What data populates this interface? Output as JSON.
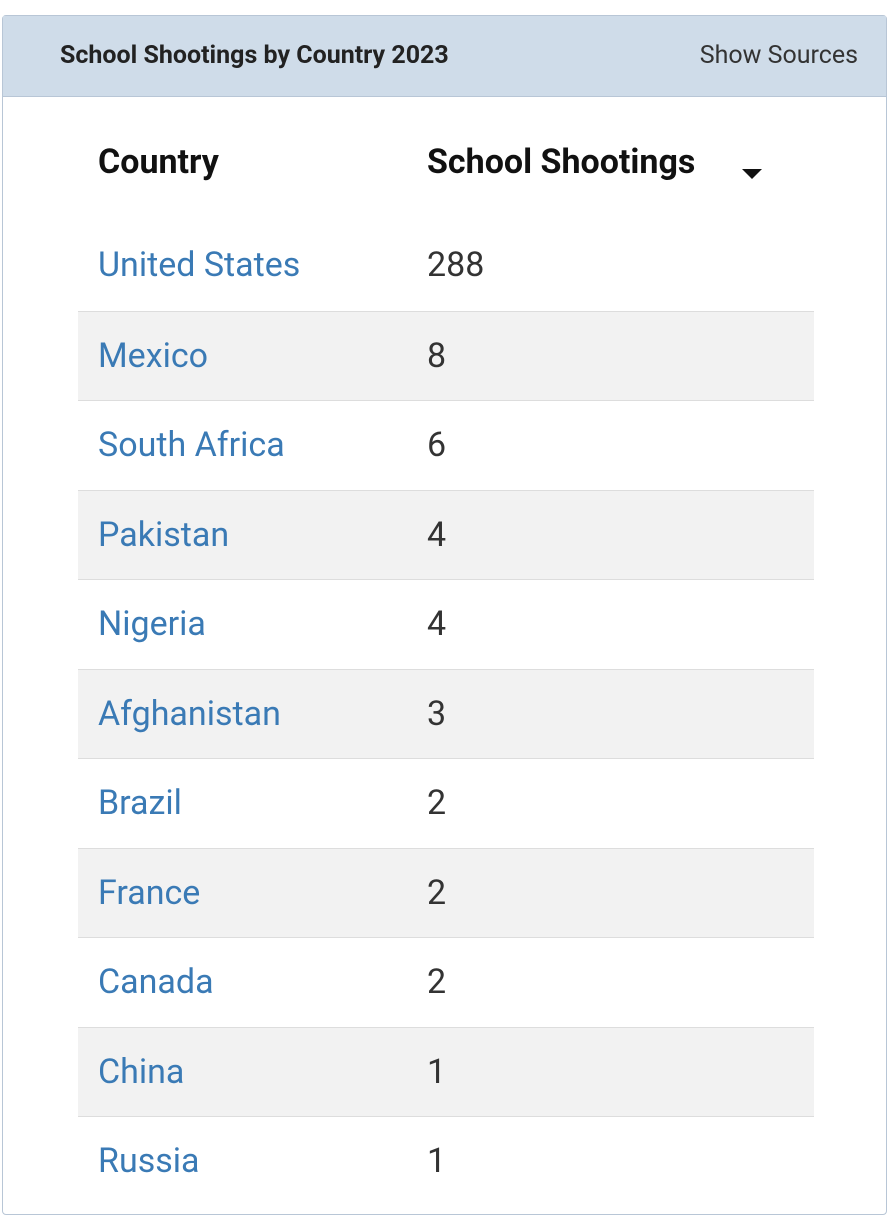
{
  "header": {
    "title": "School Shootings by Country 2023",
    "action": "Show Sources"
  },
  "table": {
    "columns": [
      "Country",
      "School Shootings"
    ],
    "rows": [
      [
        "United States",
        "288"
      ],
      [
        "Mexico",
        "8"
      ],
      [
        "South Africa",
        "6"
      ],
      [
        "Pakistan",
        "4"
      ],
      [
        "Nigeria",
        "4"
      ],
      [
        "Afghanistan",
        "3"
      ],
      [
        "Brazil",
        "2"
      ],
      [
        "France",
        "2"
      ],
      [
        "Canada",
        "2"
      ],
      [
        "China",
        "1"
      ],
      [
        "Russia",
        "1"
      ]
    ]
  }
}
